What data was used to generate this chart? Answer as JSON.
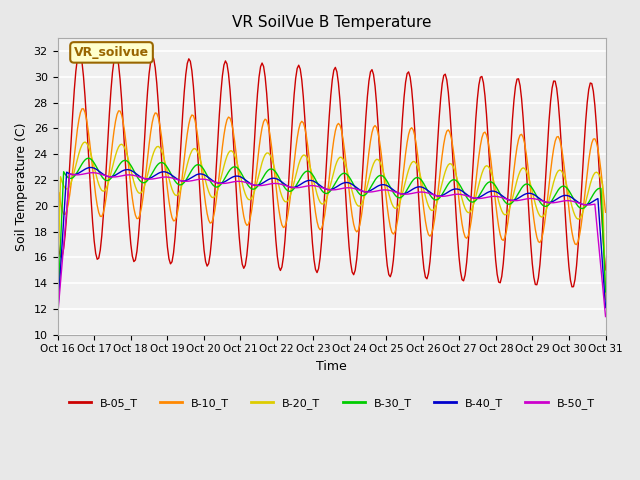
{
  "title": "VR SoilVue B Temperature",
  "xlabel": "Time",
  "ylabel": "Soil Temperature (C)",
  "ylim": [
    10,
    33
  ],
  "yticks": [
    10,
    12,
    14,
    16,
    18,
    20,
    22,
    24,
    26,
    28,
    30,
    32
  ],
  "bg_color": "#e8e8e8",
  "plot_bg": "#f0f0f0",
  "series": [
    {
      "label": "B-05_T",
      "color": "#cc0000"
    },
    {
      "label": "B-10_T",
      "color": "#ff8800"
    },
    {
      "label": "B-20_T",
      "color": "#ddcc00"
    },
    {
      "label": "B-30_T",
      "color": "#00cc00"
    },
    {
      "label": "B-40_T",
      "color": "#0000cc"
    },
    {
      "label": "B-50_T",
      "color": "#cc00cc"
    }
  ],
  "x_tick_labels": [
    "Oct 16",
    "Oct 17",
    "Oct 18",
    "Oct 19",
    "Oct 20",
    "Oct 21",
    "Oct 22",
    "Oct 23",
    "Oct 24",
    "Oct 25",
    "Oct 26",
    "Oct 27",
    "Oct 28",
    "Oct 29",
    "Oct 30",
    "Oct 31"
  ],
  "annotation_text": "VR_soilvue",
  "annotation_color": "#996600",
  "annotation_bg": "#ffffcc"
}
